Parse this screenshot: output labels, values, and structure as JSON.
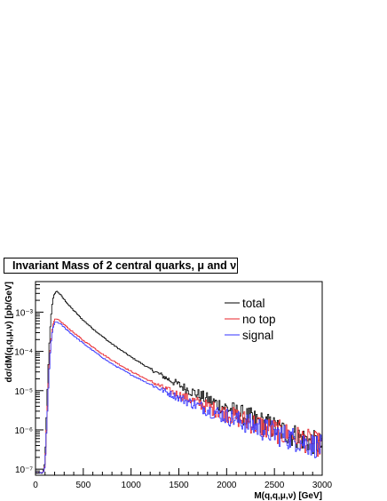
{
  "chart_data": {
    "type": "line",
    "title": "Invariant Mass of 2 central quarks, μ and ν",
    "xlabel": "M(q,q,μ,ν) [GeV]",
    "ylabel": "dσ/dM(q,q,μ,ν) [pb/GeV]",
    "xlim": [
      0,
      3000
    ],
    "ylim": [
      7e-08,
      0.006
    ],
    "yscale": "log",
    "x_ticks": [
      0,
      500,
      1000,
      1500,
      2000,
      2500,
      3000
    ],
    "x_tick_labels": [
      "0",
      "500",
      "1000",
      "1500",
      "2000",
      "2500",
      "3000"
    ],
    "y_ticks": [
      1e-07,
      1e-06,
      1e-05,
      0.0001,
      0.001
    ],
    "y_tick_labels": [
      "10⁻⁷",
      "10⁻⁶",
      "10⁻⁵",
      "10⁻⁴",
      "10⁻³"
    ],
    "legend_position": "top-right",
    "grid": false,
    "x": [
      0,
      80,
      100,
      120,
      140,
      160,
      180,
      200,
      220,
      240,
      260,
      300,
      350,
      400,
      500,
      600,
      700,
      800,
      900,
      1000,
      1200,
      1400,
      1600,
      1800,
      2000,
      2200,
      2400,
      2600,
      2800,
      3000
    ],
    "series": [
      {
        "name": "total",
        "color": "#000000",
        "values": [
          8e-08,
          8e-08,
          1.5e-07,
          5e-06,
          0.0001,
          0.0007,
          0.002,
          0.003,
          0.0034,
          0.0032,
          0.0028,
          0.0021,
          0.0015,
          0.0011,
          0.00062,
          0.00038,
          0.00024,
          0.000155,
          0.000105,
          7.2e-05,
          3.6e-05,
          1.9e-05,
          1.05e-05,
          6e-06,
          3.6e-06,
          2.2e-06,
          1.4e-06,
          9e-07,
          6e-07,
          4e-07
        ]
      },
      {
        "name": "no top",
        "color": "#e8232a",
        "values": [
          8e-08,
          8e-08,
          1.3e-07,
          2e-06,
          3e-05,
          0.00017,
          0.00045,
          0.00064,
          0.00066,
          0.00063,
          0.00058,
          0.00048,
          0.00038,
          0.0003,
          0.00019,
          0.00013,
          8.6e-05,
          6e-05,
          4.3e-05,
          3.1e-05,
          1.75e-05,
          1e-05,
          6.2e-06,
          3.9e-06,
          2.6e-06,
          1.7e-06,
          1.15e-06,
          8e-07,
          5.6e-07,
          4e-07
        ]
      },
      {
        "name": "signal",
        "color": "#3333ff",
        "values": [
          8e-08,
          8e-08,
          1.2e-07,
          1.5e-06,
          2.3e-05,
          0.00014,
          0.00038,
          0.00053,
          0.00056,
          0.00054,
          0.0005,
          0.00041,
          0.00032,
          0.00025,
          0.00016,
          0.000105,
          7e-05,
          4.8e-05,
          3.5e-05,
          2.55e-05,
          1.45e-05,
          8.5e-06,
          5.2e-06,
          3.3e-06,
          2.2e-06,
          1.5e-06,
          1e-06,
          7e-07,
          4.9e-07,
          3.5e-07
        ]
      }
    ]
  }
}
